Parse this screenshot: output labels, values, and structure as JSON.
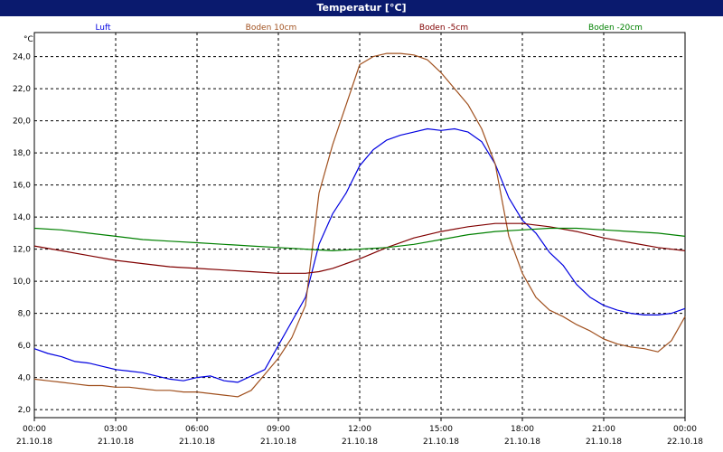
{
  "window": {
    "title": "Temperatur [°C]"
  },
  "chart_data": {
    "type": "line",
    "title": "Temperatur [°C]",
    "ylabel": "°C",
    "xlabel": "",
    "ylim": [
      1.5,
      25.5
    ],
    "xlim": [
      0,
      24
    ],
    "y_ticks": [
      "2,0",
      "4,0",
      "6,0",
      "8,0",
      "10,0",
      "12,0",
      "14,0",
      "16,0",
      "18,0",
      "20,0",
      "22,0",
      "24,0"
    ],
    "x_ticks": [
      {
        "time": "00:00",
        "date": "21.10.18"
      },
      {
        "time": "03:00",
        "date": "21.10.18"
      },
      {
        "time": "06:00",
        "date": "21.10.18"
      },
      {
        "time": "09:00",
        "date": "21.10.18"
      },
      {
        "time": "12:00",
        "date": "21.10.18"
      },
      {
        "time": "15:00",
        "date": "21.10.18"
      },
      {
        "time": "18:00",
        "date": "21.10.18"
      },
      {
        "time": "21:00",
        "date": "21.10.18"
      },
      {
        "time": "00:00",
        "date": "22.10.18"
      }
    ],
    "grid": true,
    "legend_position": "top",
    "series": [
      {
        "name": "Luft",
        "color": "#0000e0",
        "x": [
          0,
          0.5,
          1,
          1.5,
          2,
          2.5,
          3,
          3.5,
          4,
          4.5,
          5,
          5.5,
          6,
          6.5,
          7,
          7.5,
          8,
          8.5,
          9,
          9.5,
          10,
          10.5,
          11,
          11.5,
          12,
          12.5,
          13,
          13.5,
          14,
          14.5,
          15,
          15.5,
          16,
          16.5,
          17,
          17.5,
          18,
          18.5,
          19,
          19.5,
          20,
          20.5,
          21,
          21.5,
          22,
          22.5,
          23,
          23.5,
          24
        ],
        "values": [
          5.8,
          5.5,
          5.3,
          5.0,
          4.9,
          4.7,
          4.5,
          4.4,
          4.3,
          4.1,
          3.9,
          3.8,
          4.0,
          4.1,
          3.8,
          3.7,
          4.1,
          4.5,
          6.0,
          7.5,
          9.0,
          12.3,
          14.2,
          15.5,
          17.2,
          18.2,
          18.8,
          19.1,
          19.3,
          19.5,
          19.4,
          19.5,
          19.3,
          18.7,
          17.3,
          15.2,
          13.8,
          13.0,
          11.8,
          11.0,
          9.8,
          9.0,
          8.5,
          8.2,
          8.0,
          7.9,
          7.9,
          8.0,
          8.3
        ]
      },
      {
        "name": "Boden 10cm",
        "color": "#a0501e",
        "x": [
          0,
          0.5,
          1,
          1.5,
          2,
          2.5,
          3,
          3.5,
          4,
          4.5,
          5,
          5.5,
          6,
          6.5,
          7,
          7.5,
          8,
          8.5,
          9,
          9.5,
          10,
          10.5,
          11,
          11.5,
          12,
          12.5,
          13,
          13.5,
          14,
          14.5,
          15,
          15.5,
          16,
          16.5,
          17,
          17.5,
          18,
          18.5,
          19,
          19.5,
          20,
          20.5,
          21,
          21.5,
          22,
          22.5,
          23,
          23.5,
          24
        ],
        "values": [
          3.9,
          3.8,
          3.7,
          3.6,
          3.5,
          3.5,
          3.4,
          3.4,
          3.3,
          3.2,
          3.2,
          3.1,
          3.1,
          3.0,
          2.9,
          2.8,
          3.2,
          4.2,
          5.2,
          6.5,
          8.5,
          15.5,
          18.5,
          21.0,
          23.5,
          24.0,
          24.2,
          24.2,
          24.1,
          23.8,
          23.0,
          22.0,
          21.0,
          19.5,
          17.3,
          12.8,
          10.5,
          9.0,
          8.2,
          7.8,
          7.3,
          6.9,
          6.4,
          6.1,
          5.9,
          5.8,
          5.6,
          6.3,
          7.8
        ]
      },
      {
        "name": "Boden -5cm",
        "color": "#800000",
        "x": [
          0,
          1,
          2,
          3,
          4,
          5,
          6,
          7,
          8,
          9,
          10,
          10.5,
          11,
          12,
          13,
          14,
          15,
          16,
          17,
          18,
          19,
          20,
          21,
          22,
          23,
          24
        ],
        "values": [
          12.2,
          11.9,
          11.6,
          11.3,
          11.1,
          10.9,
          10.8,
          10.7,
          10.6,
          10.5,
          10.5,
          10.6,
          10.8,
          11.4,
          12.1,
          12.7,
          13.1,
          13.4,
          13.6,
          13.6,
          13.4,
          13.1,
          12.7,
          12.4,
          12.1,
          11.9
        ]
      },
      {
        "name": "Boden -20cm",
        "color": "#008000",
        "x": [
          0,
          1,
          2,
          3,
          4,
          5,
          6,
          7,
          8,
          9,
          10,
          11,
          12,
          13,
          14,
          15,
          16,
          17,
          18,
          19,
          20,
          21,
          22,
          23,
          24
        ],
        "values": [
          13.3,
          13.2,
          13.0,
          12.8,
          12.6,
          12.5,
          12.4,
          12.3,
          12.2,
          12.1,
          12.0,
          11.9,
          12.0,
          12.1,
          12.3,
          12.6,
          12.9,
          13.1,
          13.2,
          13.3,
          13.3,
          13.2,
          13.1,
          13.0,
          12.8
        ]
      }
    ]
  }
}
